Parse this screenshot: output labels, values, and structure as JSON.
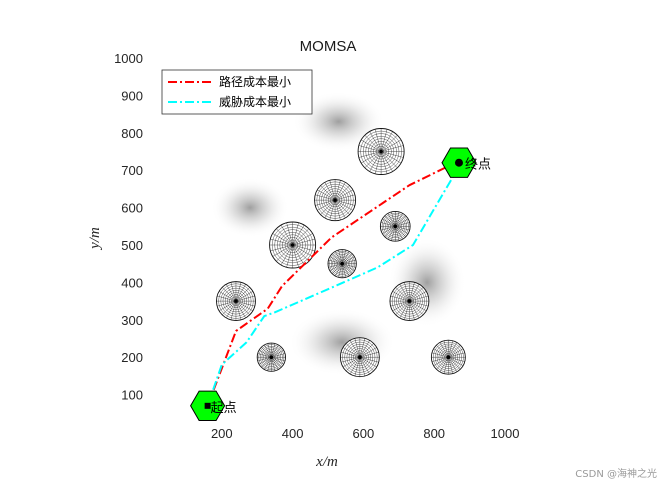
{
  "chart_data": {
    "type": "line",
    "title": "MOMSA",
    "xlabel": "x/m",
    "ylabel": "y/m",
    "xlim": [
      0,
      1000
    ],
    "ylim": [
      0,
      1000
    ],
    "xticks": [
      "200",
      "400",
      "600",
      "800",
      "1000"
    ],
    "yticks": [
      "100",
      "200",
      "300",
      "400",
      "500",
      "600",
      "700",
      "800",
      "900",
      "1000"
    ],
    "grid": false,
    "legend_position": "top-left",
    "series": [
      {
        "name": "路径成本最小",
        "color": "#ff0000",
        "dash": "dash-dot",
        "x": [
          160,
          240,
          330,
          370,
          510,
          620,
          730,
          860
        ],
        "y": [
          70,
          270,
          330,
          390,
          520,
          590,
          660,
          720
        ]
      },
      {
        "name": "威胁成本最小",
        "color": "#00ffff",
        "dash": "dash-dot",
        "x": [
          160,
          200,
          270,
          320,
          350,
          520,
          640,
          740,
          870
        ],
        "y": [
          70,
          180,
          240,
          310,
          320,
          390,
          440,
          500,
          710
        ]
      }
    ],
    "threats": [
      {
        "cx": 650,
        "cy": 750,
        "r": 65
      },
      {
        "cx": 520,
        "cy": 620,
        "r": 58
      },
      {
        "cx": 690,
        "cy": 550,
        "r": 42
      },
      {
        "cx": 400,
        "cy": 500,
        "r": 65
      },
      {
        "cx": 540,
        "cy": 450,
        "r": 40
      },
      {
        "cx": 240,
        "cy": 350,
        "r": 55
      },
      {
        "cx": 730,
        "cy": 350,
        "r": 55
      },
      {
        "cx": 340,
        "cy": 200,
        "r": 40
      },
      {
        "cx": 590,
        "cy": 200,
        "r": 55
      },
      {
        "cx": 840,
        "cy": 200,
        "r": 48
      }
    ],
    "terrain_shading": [
      {
        "cx": 530,
        "cy": 830,
        "rx": 130,
        "ry": 80
      },
      {
        "cx": 540,
        "cy": 240,
        "rx": 150,
        "ry": 90
      },
      {
        "cx": 280,
        "cy": 600,
        "rx": 110,
        "ry": 80
      },
      {
        "cx": 780,
        "cy": 400,
        "rx": 110,
        "ry": 120
      }
    ],
    "annotations": {
      "start": {
        "label": "起点",
        "x": 160,
        "y": 70,
        "color": "#00ff00"
      },
      "end": {
        "label": "终点",
        "x": 870,
        "y": 720,
        "color": "#00ff00"
      }
    }
  },
  "watermark": "CSDN @海神之光"
}
